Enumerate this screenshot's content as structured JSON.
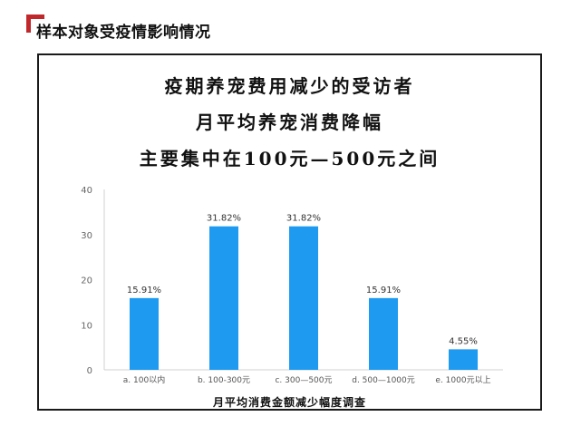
{
  "section_title": "样本对象受疫情影响情况",
  "headline_lines": [
    "疫期养宠费用减少的受访者",
    "月平均养宠消费降幅",
    "主要集中在100元—500元之间"
  ],
  "chart_data": {
    "type": "bar",
    "xlabel": "月平均消费金额减少幅度调查",
    "ylabel": "",
    "ylim": [
      0,
      40
    ],
    "yticks": [
      0,
      10,
      20,
      30,
      40
    ],
    "categories": [
      "a. 100以内",
      "b. 100-300元",
      "c. 300—500元",
      "d. 500—1000元",
      "e. 1000元以上"
    ],
    "values": [
      15.91,
      31.82,
      31.82,
      15.91,
      4.55
    ],
    "data_labels": [
      "15.91%",
      "31.82%",
      "31.82%",
      "15.91%",
      "4.55%"
    ],
    "bar_color": "#1e9bf0",
    "grid": false,
    "legend": "none"
  },
  "colors": {
    "accent": "#c0282b",
    "frame": "#1a1a1a"
  }
}
